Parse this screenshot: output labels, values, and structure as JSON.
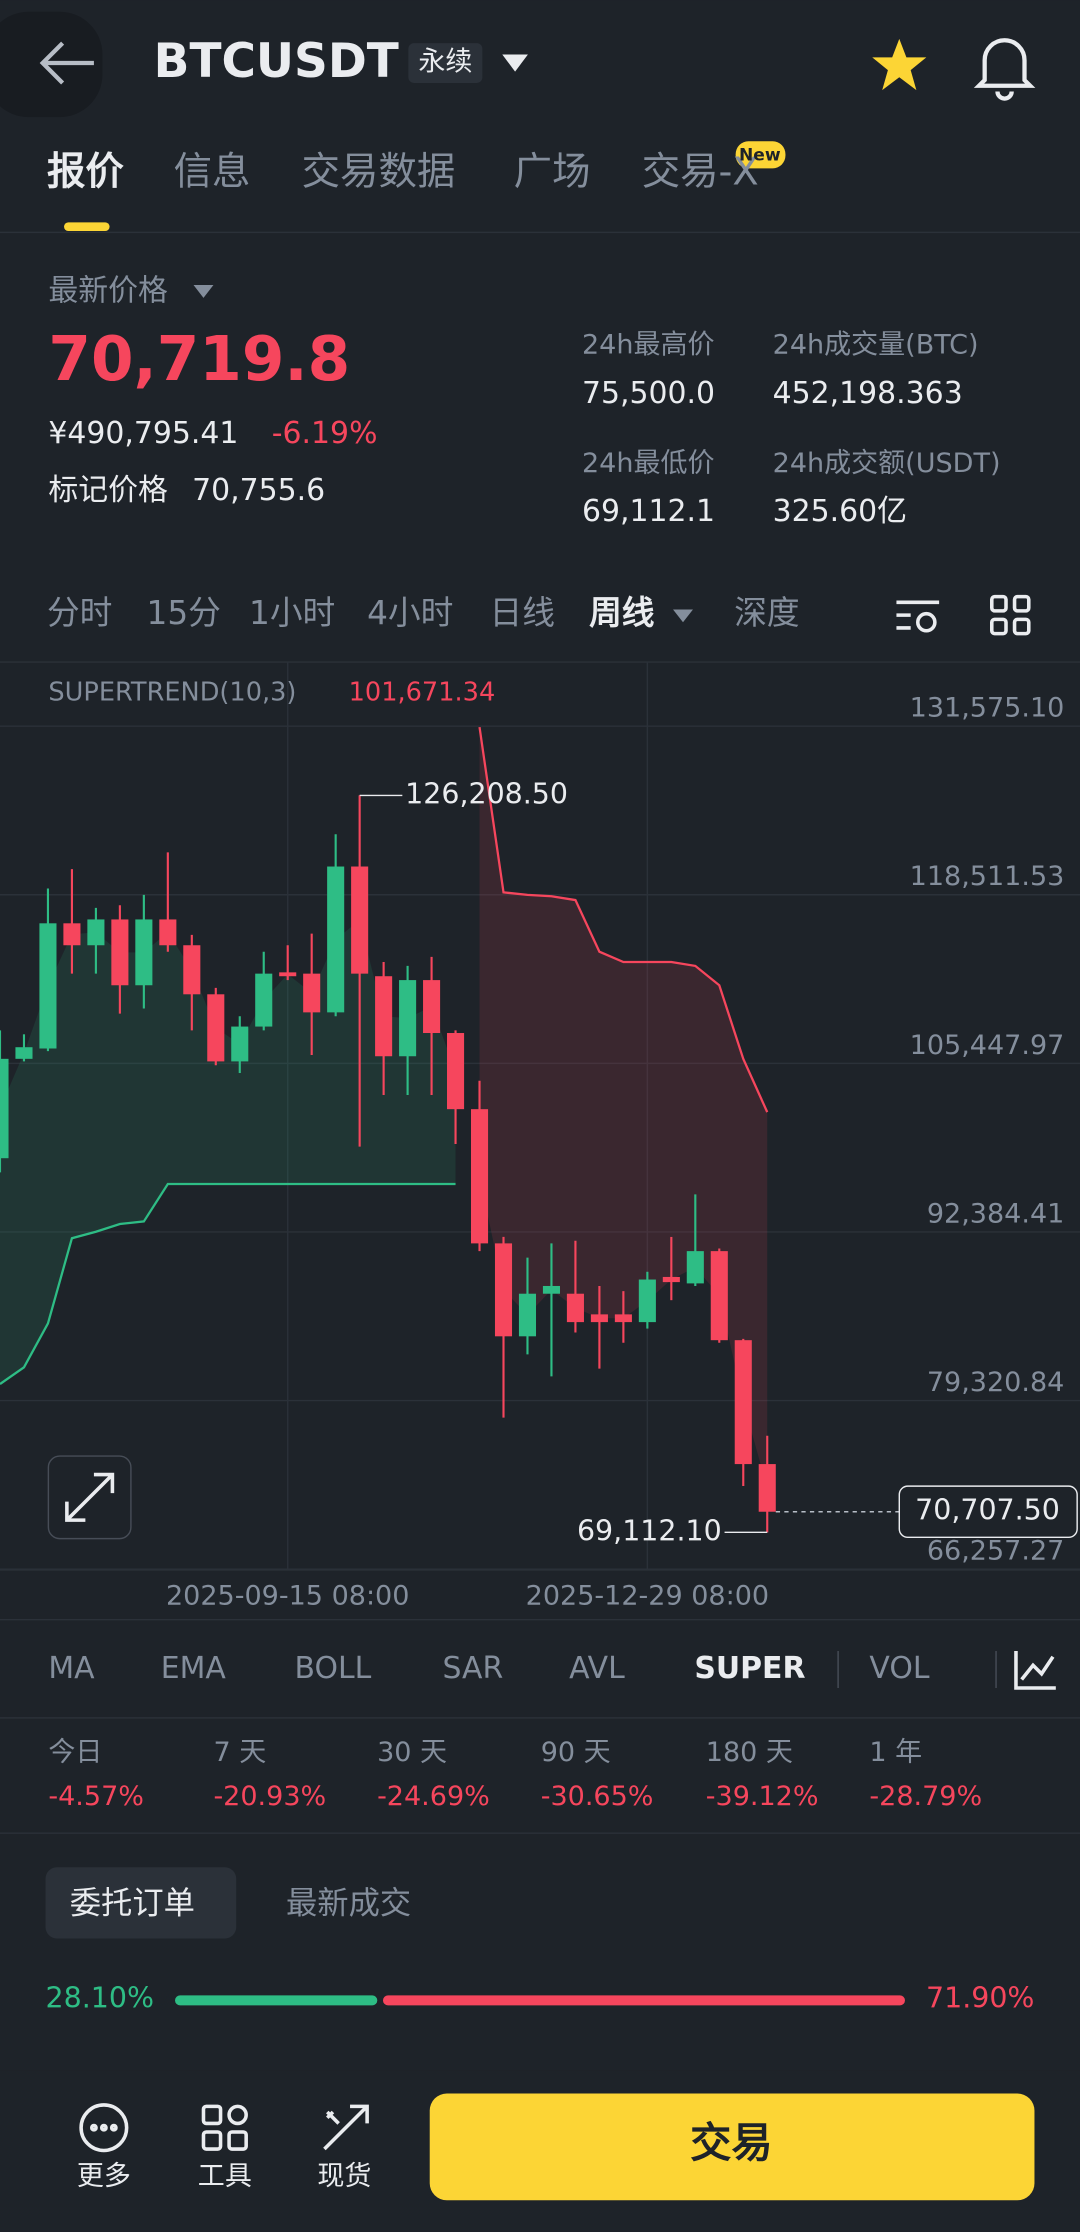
{
  "header": {
    "title": "BTCUSDT",
    "badge": "永续"
  },
  "tabs": {
    "items": [
      "报价",
      "信息",
      "交易数据",
      "广场",
      "交易-X"
    ],
    "new_badge": "New"
  },
  "ticker": {
    "label": "最新价格",
    "price": "70,719.8",
    "cny": "¥490,795.41",
    "change": "-6.19%",
    "mark_label": "标记价格",
    "mark_price": "70,755.6",
    "stats": [
      {
        "label": "24h最高价",
        "value": "75,500.0"
      },
      {
        "label": "24h成交量(BTC)",
        "value": "452,198.363"
      },
      {
        "label": "24h最低价",
        "value": "69,112.1"
      },
      {
        "label": "24h成交额(USDT)",
        "value": "325.60亿"
      }
    ]
  },
  "intervals": [
    "分时",
    "15分",
    "1小时",
    "4小时",
    "日线",
    "周线",
    "深度"
  ],
  "chart_data": {
    "type": "candlestick",
    "categories": [
      null,
      null,
      null,
      null,
      null,
      null,
      null,
      null,
      null,
      null,
      null,
      null,
      "2025-09-15 08:00",
      null,
      null,
      null,
      null,
      null,
      null,
      null,
      null,
      null,
      null,
      null,
      null,
      null,
      null,
      "2025-12-29 08:00",
      null,
      null,
      null,
      null,
      null
    ],
    "candles": [
      {
        "open": 98100,
        "high": 108000,
        "low": 97000,
        "close": 105800
      },
      {
        "open": 105800,
        "high": 107700,
        "low": 105600,
        "close": 106700
      },
      {
        "open": 106600,
        "high": 119000,
        "low": 106400,
        "close": 116300
      },
      {
        "open": 116300,
        "high": 120500,
        "low": 112400,
        "close": 114600
      },
      {
        "open": 114600,
        "high": 117500,
        "low": 112400,
        "close": 116600
      },
      {
        "open": 116600,
        "high": 117700,
        "low": 109300,
        "close": 111500
      },
      {
        "open": 111500,
        "high": 118500,
        "low": 109700,
        "close": 116600
      },
      {
        "open": 116600,
        "high": 121800,
        "low": 114100,
        "close": 114600
      },
      {
        "open": 114600,
        "high": 115400,
        "low": 108000,
        "close": 110800
      },
      {
        "open": 110800,
        "high": 111300,
        "low": 105300,
        "close": 105600
      },
      {
        "open": 105600,
        "high": 109100,
        "low": 104700,
        "close": 108300
      },
      {
        "open": 108300,
        "high": 114100,
        "low": 108000,
        "close": 112400
      },
      {
        "open": 112500,
        "high": 114600,
        "low": 111900,
        "close": 112200
      },
      {
        "open": 112400,
        "high": 115500,
        "low": 106100,
        "close": 109400
      },
      {
        "open": 109400,
        "high": 123200,
        "low": 109100,
        "close": 120700
      },
      {
        "open": 120700,
        "high": 126208.5,
        "low": 99000,
        "close": 112400
      },
      {
        "open": 112200,
        "high": 113300,
        "low": 103000,
        "close": 106000
      },
      {
        "open": 106000,
        "high": 113000,
        "low": 103000,
        "close": 111900
      },
      {
        "open": 111900,
        "high": 113700,
        "low": 103000,
        "close": 107800
      },
      {
        "open": 107800,
        "high": 108000,
        "low": 99200,
        "close": 101900
      },
      {
        "open": 101900,
        "high": 104100,
        "low": 90900,
        "close": 91500
      },
      {
        "open": 91500,
        "high": 92000,
        "low": 78000,
        "close": 84300
      },
      {
        "open": 84300,
        "high": 90400,
        "low": 82900,
        "close": 87600
      },
      {
        "open": 87600,
        "high": 91500,
        "low": 81200,
        "close": 88200
      },
      {
        "open": 87600,
        "high": 91700,
        "low": 84600,
        "close": 85400
      },
      {
        "open": 86000,
        "high": 88200,
        "low": 81800,
        "close": 85400
      },
      {
        "open": 86000,
        "high": 87800,
        "low": 83800,
        "close": 85400
      },
      {
        "open": 85400,
        "high": 89300,
        "low": 84900,
        "close": 88700
      },
      {
        "open": 88900,
        "high": 92000,
        "low": 87100,
        "close": 88500
      },
      {
        "open": 88400,
        "high": 95300,
        "low": 88200,
        "close": 90900
      },
      {
        "open": 90900,
        "high": 91100,
        "low": 83800,
        "close": 84000
      },
      {
        "open": 84000,
        "high": 84100,
        "low": 72700,
        "close": 74400
      },
      {
        "open": 74400,
        "high": 76600,
        "low": 69112.1,
        "close": 70707.5
      }
    ],
    "up_color": "#2ebd85",
    "down_color": "#f6465d",
    "supertrend": {
      "label": "SUPERTREND(10,3)",
      "value": 101671.34,
      "value_label": "101,671.34",
      "up": [
        80600,
        81900,
        85300,
        91900,
        92400,
        93000,
        93200,
        96100,
        96100,
        96100,
        96100,
        96100,
        96100,
        96100,
        96100,
        96100,
        96100,
        96100,
        96100,
        96100,
        null,
        null,
        null,
        null,
        null,
        null,
        null,
        null,
        null,
        null,
        null,
        null,
        null
      ],
      "down": [
        null,
        null,
        null,
        null,
        null,
        null,
        null,
        null,
        null,
        null,
        null,
        null,
        null,
        null,
        null,
        null,
        null,
        null,
        null,
        null,
        131500,
        118700,
        118500,
        118400,
        118100,
        114100,
        113300,
        113300,
        113300,
        113000,
        111500,
        105800,
        101671.34
      ]
    },
    "high_label": {
      "value": 126208.5,
      "label": "126,208.50"
    },
    "low_label": {
      "value": 69112.1,
      "label": "69,112.10"
    },
    "last_price": {
      "value": 70707.5,
      "label": "70,707.50"
    },
    "ylim": [
      66200,
      136540
    ],
    "yticks": [
      {
        "value": 131575.1,
        "label": "131,575.10"
      },
      {
        "value": 118511.53,
        "label": "118,511.53"
      },
      {
        "value": 105447.97,
        "label": "105,447.97"
      },
      {
        "value": 92384.41,
        "label": "92,384.41"
      },
      {
        "value": 79320.84,
        "label": "79,320.84"
      },
      {
        "value": 66257.27,
        "label": "66,257.27"
      }
    ],
    "grid": true
  },
  "indicators": [
    "MA",
    "EMA",
    "BOLL",
    "SAR",
    "AVL",
    "SUPER",
    "VOL"
  ],
  "performance": [
    {
      "label": "今日",
      "value": "-4.57%"
    },
    {
      "label": "7 天",
      "value": "-20.93%"
    },
    {
      "label": "30 天",
      "value": "-24.69%"
    },
    {
      "label": "90 天",
      "value": "-30.65%"
    },
    {
      "label": "180 天",
      "value": "-39.12%"
    },
    {
      "label": "1 年",
      "value": "-28.79%"
    }
  ],
  "orders": {
    "tabs": [
      "委托订单",
      "最新成交"
    ],
    "ratio": {
      "values": [
        28.1,
        71.9
      ],
      "value_labels": [
        "28.10%",
        "71.90%"
      ]
    }
  },
  "bottom_nav": {
    "items": [
      "更多",
      "工具",
      "现货"
    ],
    "button": "交易"
  }
}
